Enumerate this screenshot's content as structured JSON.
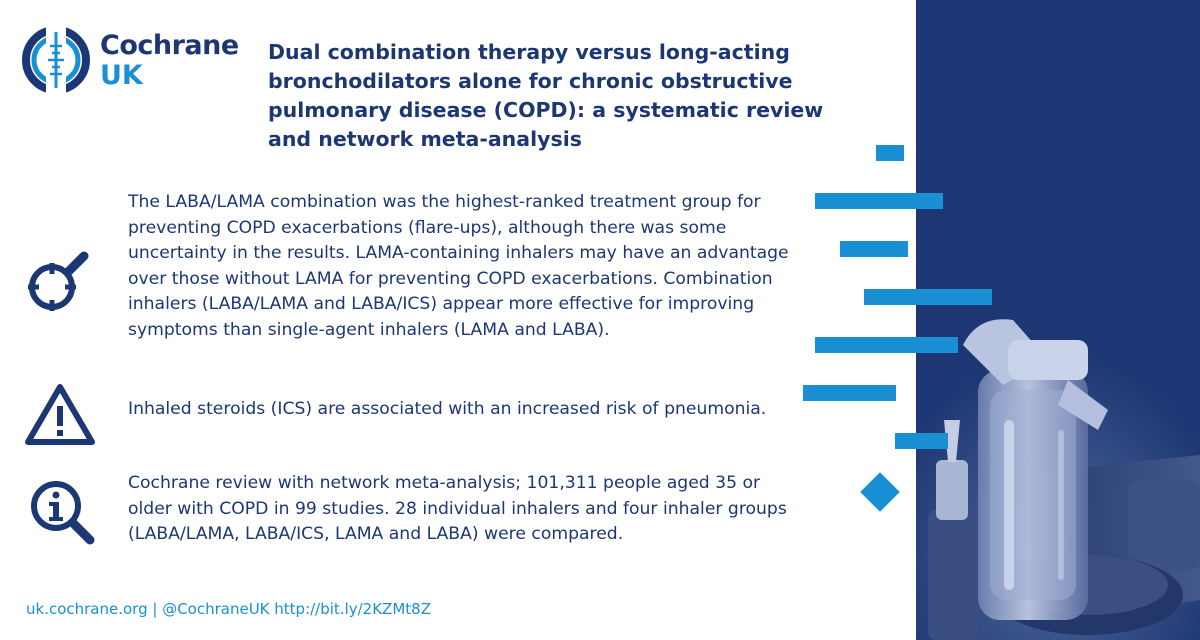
{
  "brand": {
    "name": "Cochrane",
    "region": "UK"
  },
  "title": "Dual combination therapy versus long-acting bronchodilators alone for chronic obstructive pulmonary disease (COPD): a systematic review and network meta-analysis",
  "findings": [
    {
      "icon": "target-magnifier-icon",
      "text": "The LABA/LAMA combination was the highest-ranked treatment group for preventing COPD exacerbations (flare-ups), although there was some uncertainty in the results. LAMA-containing inhalers may have an advantage over those without LAMA for preventing COPD exacerbations. Combination inhalers (LABA/LAMA and LABA/ICS) appear more effective for improving symptoms than single-agent inhalers (LAMA and LABA)."
    },
    {
      "icon": "warning-triangle-icon",
      "text": "Inhaled steroids (ICS) are associated with an increased risk of pneumonia."
    },
    {
      "icon": "info-magnifier-icon",
      "text": "Cochrane review with network meta-analysis; 101,311 people aged 35 or older with COPD in 99 studies. 28 individual inhalers and four inhaler groups (LABA/LAMA, LABA/ICS, LAMA and LABA) were compared."
    }
  ],
  "footer": "uk.cochrane.org | @CochraneUK http://bit.ly/2KZMt8Z",
  "colors": {
    "navy": "#1c3773",
    "accent_blue": "#1b8fd3",
    "background": "#ffffff"
  }
}
